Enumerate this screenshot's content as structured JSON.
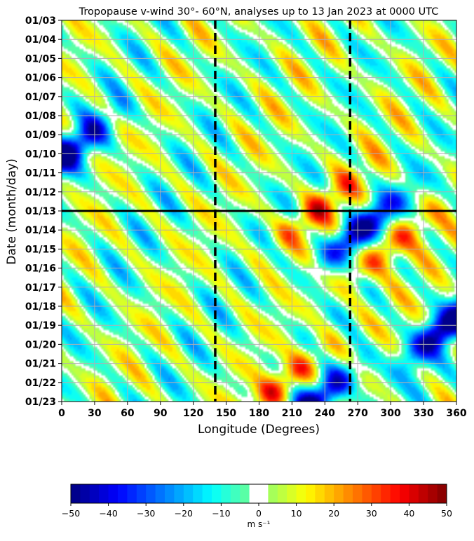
{
  "chart_data": {
    "type": "heatmap",
    "title": "Tropopause v-wind 30°- 60°N, analyses up to 13 Jan 2023 at 0000 UTC",
    "xlabel": "Longitude (Degrees)",
    "ylabel": "Date (month/day)",
    "x_ticks": [
      0,
      30,
      60,
      90,
      120,
      150,
      180,
      210,
      240,
      270,
      300,
      330,
      360
    ],
    "xlim": [
      0,
      360
    ],
    "y_ticks": [
      "01/03",
      "01/04",
      "01/05",
      "01/06",
      "01/07",
      "01/08",
      "01/09",
      "01/10",
      "01/11",
      "01/12",
      "01/13",
      "01/14",
      "01/15",
      "01/16",
      "01/17",
      "01/18",
      "01/19",
      "01/20",
      "01/21",
      "01/22",
      "01/23"
    ],
    "grid": true,
    "analysis_line_date": "01/13",
    "dashed_longitudes": [
      140,
      263
    ],
    "colorbar": {
      "label": "m s⁻¹",
      "ticks": [
        -50,
        -40,
        -30,
        -20,
        -10,
        0,
        10,
        20,
        30,
        40,
        50
      ],
      "range": [
        -50,
        50
      ],
      "white_band": [
        -2.5,
        2.5
      ],
      "colormap": "jet"
    },
    "features": [
      {
        "sign": "positive",
        "lon": 232,
        "date": "01/13",
        "peak": 40
      },
      {
        "sign": "positive",
        "lon": 296,
        "date": "01/15",
        "peak": 42
      },
      {
        "sign": "positive",
        "lon": 203,
        "date": "01/22",
        "peak": 45
      },
      {
        "sign": "negative",
        "lon": 272,
        "date": "01/14",
        "peak": -35
      },
      {
        "sign": "negative",
        "lon": 352,
        "date": "01/19",
        "peak": -38
      },
      {
        "sign": "negative",
        "lon": 232,
        "date": "01/23",
        "peak": -38
      },
      {
        "sign": "negative",
        "lon": 5,
        "date": "01/10",
        "peak": -32
      }
    ]
  }
}
